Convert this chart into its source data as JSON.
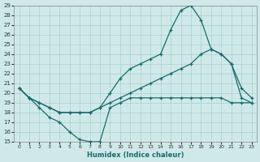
{
  "xlabel": "Humidex (Indice chaleur)",
  "xlim": [
    -0.5,
    23.5
  ],
  "ylim": [
    15,
    29
  ],
  "yticks": [
    15,
    16,
    17,
    18,
    19,
    20,
    21,
    22,
    23,
    24,
    25,
    26,
    27,
    28,
    29
  ],
  "xticks": [
    0,
    1,
    2,
    3,
    4,
    5,
    6,
    7,
    8,
    9,
    10,
    11,
    12,
    13,
    14,
    15,
    16,
    17,
    18,
    19,
    20,
    21,
    22,
    23
  ],
  "background_color": "#cfe9e9",
  "grid_color": "#a8d0d0",
  "line_color": "#1a6b6b",
  "line_top_x": [
    0,
    1,
    2,
    3,
    4,
    5,
    6,
    7,
    8,
    9,
    10,
    11,
    12,
    13,
    14,
    15,
    16,
    17,
    18,
    19,
    20,
    21,
    22,
    23
  ],
  "line_top_y": [
    20.5,
    19.5,
    19.0,
    18.5,
    18.0,
    18.0,
    18.0,
    18.0,
    18.5,
    20.0,
    21.5,
    22.5,
    23.0,
    23.5,
    24.0,
    26.5,
    28.5,
    29.0,
    27.5,
    24.5,
    24.0,
    23.0,
    20.5,
    19.5
  ],
  "line_mid_x": [
    0,
    1,
    2,
    3,
    4,
    5,
    6,
    7,
    8,
    9,
    10,
    11,
    12,
    13,
    14,
    15,
    16,
    17,
    18,
    19,
    20,
    21,
    22,
    23
  ],
  "line_mid_y": [
    20.5,
    19.5,
    19.0,
    18.5,
    18.0,
    18.0,
    18.0,
    18.0,
    18.5,
    19.0,
    19.5,
    20.0,
    20.5,
    21.0,
    21.5,
    22.0,
    22.5,
    23.0,
    24.0,
    24.5,
    24.0,
    23.0,
    19.5,
    19.0
  ],
  "line_bot_x": [
    0,
    1,
    2,
    3,
    4,
    5,
    6,
    7,
    8,
    9,
    10,
    11,
    12,
    13,
    14,
    15,
    16,
    17,
    18,
    19,
    20,
    21,
    22,
    23
  ],
  "line_bot_y": [
    20.5,
    19.5,
    18.5,
    17.5,
    17.0,
    16.0,
    15.2,
    15.0,
    15.0,
    18.5,
    19.0,
    19.5,
    19.5,
    19.5,
    19.5,
    19.5,
    19.5,
    19.5,
    19.5,
    19.5,
    19.5,
    19.0,
    19.0,
    19.0
  ]
}
